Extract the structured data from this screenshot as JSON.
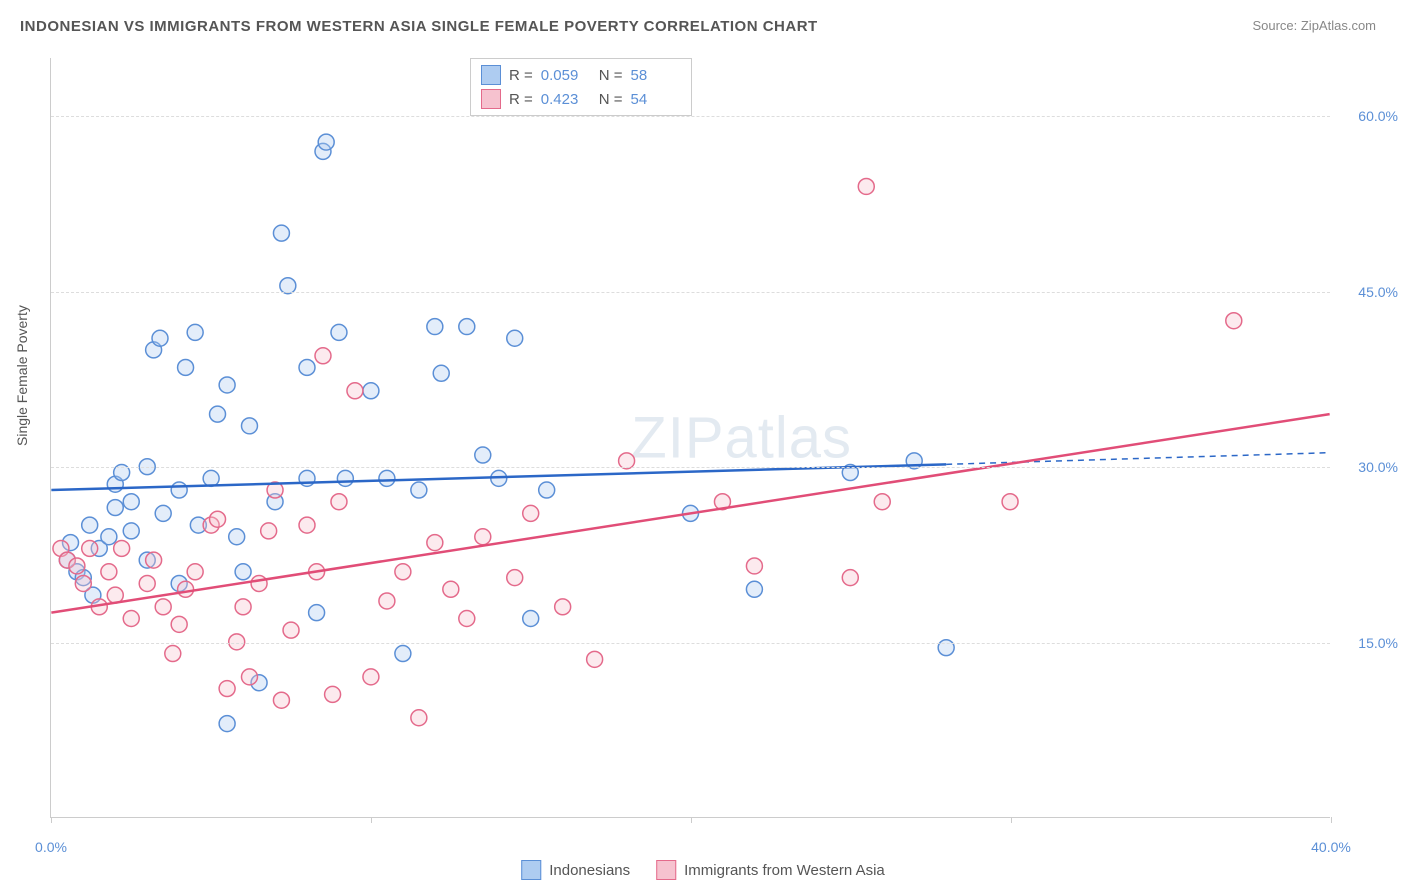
{
  "title": "INDONESIAN VS IMMIGRANTS FROM WESTERN ASIA SINGLE FEMALE POVERTY CORRELATION CHART",
  "source": "Source: ZipAtlas.com",
  "y_axis_title": "Single Female Poverty",
  "watermark": "ZIPatlas",
  "chart": {
    "type": "scatter",
    "background_color": "#ffffff",
    "grid_color": "#dddddd",
    "axis_line_color": "#cccccc",
    "tick_label_color": "#5b8fd6",
    "text_color": "#555555",
    "xlim": [
      0,
      40
    ],
    "ylim": [
      0,
      65
    ],
    "x_ticks": [
      0,
      10,
      20,
      30,
      40
    ],
    "x_tick_labels": [
      "0.0%",
      "",
      "",
      "",
      "40.0%"
    ],
    "y_ticks": [
      15,
      30,
      45,
      60
    ],
    "y_tick_labels": [
      "15.0%",
      "30.0%",
      "45.0%",
      "60.0%"
    ],
    "marker_radius": 8,
    "marker_stroke_width": 1.5,
    "marker_fill_opacity": 0.35,
    "regression_line_width": 2.5,
    "title_fontsize": 15,
    "label_fontsize": 14
  },
  "stats_legend": {
    "rows": [
      {
        "swatch_fill": "#aeccf1",
        "swatch_border": "#5b8fd6",
        "r_label": "R =",
        "r_value": "0.059",
        "n_label": "N =",
        "n_value": "58"
      },
      {
        "swatch_fill": "#f6c2cf",
        "swatch_border": "#e46a8b",
        "r_label": "R =",
        "r_value": "0.423",
        "n_label": "N =",
        "n_value": "54"
      }
    ]
  },
  "series_legend": {
    "items": [
      {
        "swatch_fill": "#aeccf1",
        "swatch_border": "#5b8fd6",
        "label": "Indonesians"
      },
      {
        "swatch_fill": "#f6c2cf",
        "swatch_border": "#e46a8b",
        "label": "Immigrants from Western Asia"
      }
    ]
  },
  "series": [
    {
      "name": "Indonesians",
      "marker_fill": "#aeccf1",
      "marker_stroke": "#5b8fd6",
      "regression": {
        "color": "#2b67c7",
        "x1": 0,
        "y1": 28.0,
        "x2_solid": 28,
        "y2_solid": 30.2,
        "x2": 40,
        "y2": 31.2,
        "dash_after": 28
      },
      "points": [
        [
          0.5,
          22
        ],
        [
          0.6,
          23.5
        ],
        [
          0.8,
          21
        ],
        [
          1,
          20.5
        ],
        [
          1.2,
          25
        ],
        [
          1.3,
          19
        ],
        [
          1.5,
          23
        ],
        [
          1.8,
          24
        ],
        [
          2,
          26.5
        ],
        [
          2,
          28.5
        ],
        [
          2.2,
          29.5
        ],
        [
          2.5,
          24.5
        ],
        [
          2.5,
          27
        ],
        [
          3,
          22
        ],
        [
          3,
          30
        ],
        [
          3.2,
          40
        ],
        [
          3.4,
          41
        ],
        [
          3.5,
          26
        ],
        [
          4,
          28
        ],
        [
          4,
          20
        ],
        [
          4.2,
          38.5
        ],
        [
          4.5,
          41.5
        ],
        [
          4.6,
          25
        ],
        [
          5,
          29
        ],
        [
          5.2,
          34.5
        ],
        [
          5.5,
          37
        ],
        [
          5.8,
          24
        ],
        [
          5.5,
          8
        ],
        [
          6,
          21
        ],
        [
          6.2,
          33.5
        ],
        [
          6.5,
          11.5
        ],
        [
          7,
          27
        ],
        [
          7.2,
          50
        ],
        [
          7.4,
          45.5
        ],
        [
          8,
          29
        ],
        [
          8,
          38.5
        ],
        [
          8.3,
          17.5
        ],
        [
          8.5,
          57
        ],
        [
          8.6,
          57.8
        ],
        [
          9,
          41.5
        ],
        [
          9.2,
          29
        ],
        [
          10,
          36.5
        ],
        [
          10.5,
          29
        ],
        [
          11,
          14
        ],
        [
          11.5,
          28
        ],
        [
          12,
          42
        ],
        [
          12.2,
          38
        ],
        [
          13,
          42
        ],
        [
          13.5,
          31
        ],
        [
          14,
          29
        ],
        [
          14.5,
          41
        ],
        [
          15,
          17
        ],
        [
          15.5,
          28
        ],
        [
          20,
          26
        ],
        [
          22,
          19.5
        ],
        [
          25,
          29.5
        ],
        [
          27,
          30.5
        ],
        [
          28,
          14.5
        ]
      ]
    },
    {
      "name": "Immigrants from Western Asia",
      "marker_fill": "#f6c2cf",
      "marker_stroke": "#e46a8b",
      "regression": {
        "color": "#e14d77",
        "x1": 0,
        "y1": 17.5,
        "x2": 40,
        "y2": 34.5
      },
      "points": [
        [
          0.3,
          23
        ],
        [
          0.5,
          22
        ],
        [
          0.8,
          21.5
        ],
        [
          1,
          20
        ],
        [
          1.2,
          23
        ],
        [
          1.5,
          18
        ],
        [
          1.8,
          21
        ],
        [
          2,
          19
        ],
        [
          2.2,
          23
        ],
        [
          2.5,
          17
        ],
        [
          3,
          20
        ],
        [
          3.2,
          22
        ],
        [
          3.5,
          18
        ],
        [
          3.8,
          14
        ],
        [
          4,
          16.5
        ],
        [
          4.2,
          19.5
        ],
        [
          4.5,
          21
        ],
        [
          5,
          25
        ],
        [
          5.2,
          25.5
        ],
        [
          5.5,
          11
        ],
        [
          5.8,
          15
        ],
        [
          6,
          18
        ],
        [
          6.2,
          12
        ],
        [
          6.5,
          20
        ],
        [
          6.8,
          24.5
        ],
        [
          7,
          28
        ],
        [
          7.2,
          10
        ],
        [
          7.5,
          16
        ],
        [
          8,
          25
        ],
        [
          8.3,
          21
        ],
        [
          8.5,
          39.5
        ],
        [
          8.8,
          10.5
        ],
        [
          9,
          27
        ],
        [
          9.5,
          36.5
        ],
        [
          10,
          12
        ],
        [
          10.5,
          18.5
        ],
        [
          11,
          21
        ],
        [
          11.5,
          8.5
        ],
        [
          12,
          23.5
        ],
        [
          12.5,
          19.5
        ],
        [
          13,
          17
        ],
        [
          13.5,
          24
        ],
        [
          14.5,
          20.5
        ],
        [
          15,
          26
        ],
        [
          16,
          18
        ],
        [
          17,
          13.5
        ],
        [
          18,
          30.5
        ],
        [
          21,
          27
        ],
        [
          22,
          21.5
        ],
        [
          25,
          20.5
        ],
        [
          25.5,
          54
        ],
        [
          26,
          27
        ],
        [
          30,
          27
        ],
        [
          37,
          42.5
        ]
      ]
    }
  ]
}
